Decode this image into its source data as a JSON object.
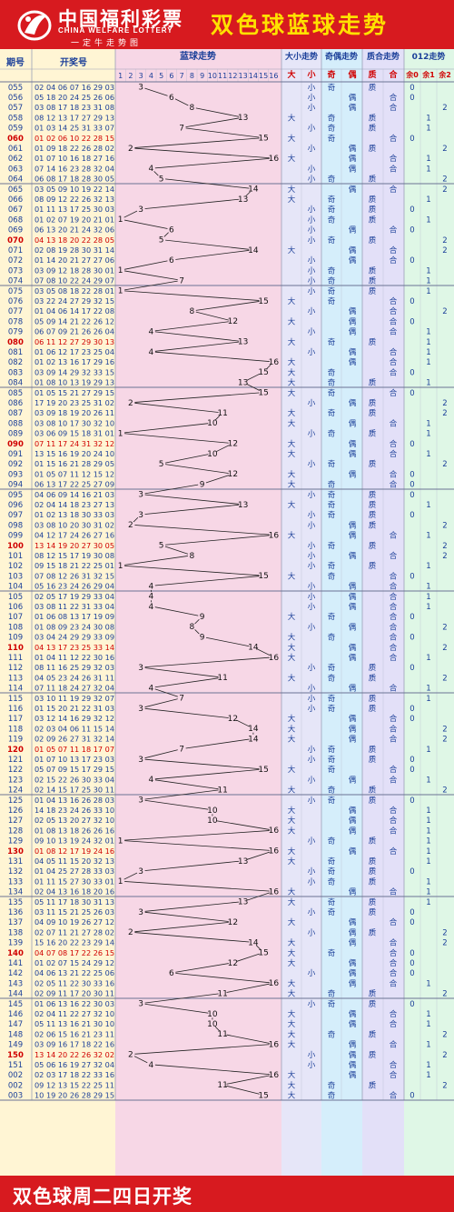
{
  "brand": {
    "name_cn": "中国福利彩票",
    "name_en": "CHINA WELFARE LOTTERY",
    "slogan": "一定牛走势图"
  },
  "title": "双色球蓝球走势",
  "footer": "双色球周二四日开奖",
  "colors": {
    "header_red": "#d71a1f",
    "title_yellow": "#ffe100",
    "text_blue": "#1b3f99",
    "highlight_red": "#d00000"
  },
  "columns": {
    "period": "期号",
    "numbers": "开奖号",
    "blue": "蓝球走势",
    "size": "大小走势",
    "parity": "奇偶走势",
    "prime": "质合走势",
    "mod3": "012走势"
  },
  "subheaders": {
    "big": "大",
    "small": "小",
    "odd": "奇",
    "even": "偶",
    "prime": "质",
    "composite": "合",
    "r0": "余0",
    "r1": "余1",
    "r2": "余2"
  },
  "chart_data": {
    "type": "table",
    "blue_range": [
      1,
      16
    ],
    "blue_ticks": [
      "1",
      "2",
      "3",
      "4",
      "5",
      "6",
      "7",
      "8",
      "9",
      "10",
      "11",
      "12",
      "13",
      "14",
      "15",
      "16"
    ],
    "rows": [
      {
        "p": "055",
        "n": "02 04 06 07 16 29 03",
        "b": 3
      },
      {
        "p": "056",
        "n": "05 18 20 24 25 26 06",
        "b": 6
      },
      {
        "p": "057",
        "n": "03 08 17 18 23 31 08",
        "b": 8
      },
      {
        "p": "058",
        "n": "08 12 13 17 27 29 13",
        "b": 13
      },
      {
        "p": "059",
        "n": "01 03 14 25 31 33 07",
        "b": 7
      },
      {
        "p": "060",
        "n": "01 02 06 10 22 28 15",
        "b": 15
      },
      {
        "p": "061",
        "n": "01 09 18 22 26 28 02",
        "b": 2
      },
      {
        "p": "062",
        "n": "01 07 10 16 18 27 16",
        "b": 16
      },
      {
        "p": "063",
        "n": "07 14 16 23 28 32 04",
        "b": 4
      },
      {
        "p": "064",
        "n": "06 08 17 18 28 30 05",
        "b": 5
      },
      {
        "p": "065",
        "n": "03 05 09 10 19 22 14",
        "b": 14
      },
      {
        "p": "066",
        "n": "08 09 12 22 26 32 13",
        "b": 13
      },
      {
        "p": "067",
        "n": "01 11 13 17 25 30 03",
        "b": 3
      },
      {
        "p": "068",
        "n": "01 02 07 19 20 21 01",
        "b": 1
      },
      {
        "p": "069",
        "n": "06 13 20 21 24 32 06",
        "b": 6
      },
      {
        "p": "070",
        "n": "04 13 18 20 22 28 05",
        "b": 5
      },
      {
        "p": "071",
        "n": "02 08 19 28 30 31 14",
        "b": 14
      },
      {
        "p": "072",
        "n": "01 14 20 21 27 27 06",
        "b": 6
      },
      {
        "p": "073",
        "n": "03 09 12 18 28 30 01",
        "b": 1
      },
      {
        "p": "074",
        "n": "07 08 10 22 24 29 07",
        "b": 7
      },
      {
        "p": "075",
        "n": "03 05 08 18 22 28 01",
        "b": 1
      },
      {
        "p": "076",
        "n": "03 22 24 27 29 32 15",
        "b": 15
      },
      {
        "p": "077",
        "n": "01 04 06 14 17 22 08",
        "b": 8
      },
      {
        "p": "078",
        "n": "05 09 14 21 22 26 12",
        "b": 12
      },
      {
        "p": "079",
        "n": "06 07 09 21 26 26 04",
        "b": 4
      },
      {
        "p": "080",
        "n": "06 11 12 27 29 30 13",
        "b": 13
      },
      {
        "p": "081",
        "n": "01 06 12 17 23 25 04",
        "b": 4
      },
      {
        "p": "082",
        "n": "01 02 13 16 17 29 16",
        "b": 16
      },
      {
        "p": "083",
        "n": "03 09 14 29 32 33 15",
        "b": 15
      },
      {
        "p": "084",
        "n": "01 08 10 13 19 29 13",
        "b": 13
      },
      {
        "p": "085",
        "n": "01 05 15 21 27 29 15",
        "b": 15
      },
      {
        "p": "086",
        "n": "17 19 20 23 25 31 02",
        "b": 2
      },
      {
        "p": "087",
        "n": "03 09 18 19 20 26 11",
        "b": 11
      },
      {
        "p": "088",
        "n": "03 08 10 17 30 32 10",
        "b": 10
      },
      {
        "p": "089",
        "n": "03 06 09 15 18 31 01",
        "b": 1
      },
      {
        "p": "090",
        "n": "07 11 17 24 31 32 12",
        "b": 12
      },
      {
        "p": "091",
        "n": "13 15 16 19 20 24 10",
        "b": 10
      },
      {
        "p": "092",
        "n": "01 15 16 21 28 29 05",
        "b": 5
      },
      {
        "p": "093",
        "n": "01 05 07 11 12 15 12",
        "b": 12
      },
      {
        "p": "094",
        "n": "06 13 17 22 25 27 09",
        "b": 9
      },
      {
        "p": "095",
        "n": "04 06 09 14 16 21 03",
        "b": 3
      },
      {
        "p": "096",
        "n": "02 04 14 18 23 27 13",
        "b": 13
      },
      {
        "p": "097",
        "n": "01 02 13 18 30 33 03",
        "b": 3
      },
      {
        "p": "098",
        "n": "03 08 10 20 30 31 02",
        "b": 2
      },
      {
        "p": "099",
        "n": "04 12 17 24 26 27 16",
        "b": 16
      },
      {
        "p": "100",
        "n": "13 14 19 20 27 30 05",
        "b": 5
      },
      {
        "p": "101",
        "n": "08 12 15 17 19 30 08",
        "b": 8
      },
      {
        "p": "102",
        "n": "09 15 18 21 22 25 01",
        "b": 1
      },
      {
        "p": "103",
        "n": "07 08 12 26 31 32 15",
        "b": 15
      },
      {
        "p": "104",
        "n": "05 16 23 24 26 29 04",
        "b": 4
      },
      {
        "p": "105",
        "n": "02 05 17 19 29 33 04",
        "b": 4
      },
      {
        "p": "106",
        "n": "03 08 11 22 31 33 04",
        "b": 4
      },
      {
        "p": "107",
        "n": "01 06 08 13 17 19 09",
        "b": 9
      },
      {
        "p": "108",
        "n": "01 08 09 23 24 30 08",
        "b": 8
      },
      {
        "p": "109",
        "n": "03 04 24 29 29 33 09",
        "b": 9
      },
      {
        "p": "110",
        "n": "04 13 17 23 25 33 14",
        "b": 14
      },
      {
        "p": "111",
        "n": "01 04 11 12 22 30 16",
        "b": 16
      },
      {
        "p": "112",
        "n": "08 11 16 25 29 32 03",
        "b": 3
      },
      {
        "p": "113",
        "n": "04 05 23 24 26 31 11",
        "b": 11
      },
      {
        "p": "114",
        "n": "07 11 18 24 27 32 04",
        "b": 4
      },
      {
        "p": "115",
        "n": "03 10 11 19 29 32 07",
        "b": 7
      },
      {
        "p": "116",
        "n": "01 15 20 21 22 31 03",
        "b": 3
      },
      {
        "p": "117",
        "n": "03 12 14 16 29 32 12",
        "b": 12
      },
      {
        "p": "118",
        "n": "02 03 04 06 11 15 14",
        "b": 14
      },
      {
        "p": "119",
        "n": "02 09 26 27 31 32 14",
        "b": 14
      },
      {
        "p": "120",
        "n": "01 05 07 11 18 17 07",
        "b": 7
      },
      {
        "p": "121",
        "n": "01 07 10 13 17 23 03",
        "b": 3
      },
      {
        "p": "122",
        "n": "05 07 09 15 17 29 15",
        "b": 15
      },
      {
        "p": "123",
        "n": "02 15 22 26 30 33 04",
        "b": 4
      },
      {
        "p": "124",
        "n": "02 14 15 17 25 30 11",
        "b": 11
      },
      {
        "p": "125",
        "n": "01 04 13 16 26 28 03",
        "b": 3
      },
      {
        "p": "126",
        "n": "14 18 23 24 26 33 10",
        "b": 10
      },
      {
        "p": "127",
        "n": "02 05 13 20 27 32 10",
        "b": 10
      },
      {
        "p": "128",
        "n": "01 08 13 18 26 26 16",
        "b": 16
      },
      {
        "p": "129",
        "n": "09 10 13 19 24 32 01",
        "b": 1
      },
      {
        "p": "130",
        "n": "01 08 12 17 19 24 16",
        "b": 16
      },
      {
        "p": "131",
        "n": "04 05 11 15 20 32 13",
        "b": 13
      },
      {
        "p": "132",
        "n": "01 04 25 27 28 33 03",
        "b": 3
      },
      {
        "p": "133",
        "n": "01 11 15 27 30 33 01",
        "b": 1
      },
      {
        "p": "134",
        "n": "02 04 13 16 18 20 16",
        "b": 16
      },
      {
        "p": "135",
        "n": "05 11 17 18 30 31 13",
        "b": 13
      },
      {
        "p": "136",
        "n": "03 11 15 21 25 26 03",
        "b": 3
      },
      {
        "p": "137",
        "n": "04 09 10 19 26 27 12",
        "b": 12
      },
      {
        "p": "138",
        "n": "02 07 11 21 27 28 02",
        "b": 2
      },
      {
        "p": "139",
        "n": "15 16 20 22 23 29 14",
        "b": 14
      },
      {
        "p": "140",
        "n": "04 07 08 17 22 26 15",
        "b": 15
      },
      {
        "p": "141",
        "n": "01 02 07 15 24 29 12",
        "b": 12
      },
      {
        "p": "142",
        "n": "04 06 13 21 22 25 06",
        "b": 6
      },
      {
        "p": "143",
        "n": "02 05 11 22 30 33 16",
        "b": 16
      },
      {
        "p": "144",
        "n": "02 09 11 17 20 30 11",
        "b": 11
      },
      {
        "p": "145",
        "n": "01 06 13 16 22 30 03",
        "b": 3
      },
      {
        "p": "146",
        "n": "02 04 11 22 27 32 10",
        "b": 10
      },
      {
        "p": "147",
        "n": "05 11 13 16 21 30 10",
        "b": 10
      },
      {
        "p": "148",
        "n": "02 06 15 16 21 23 11",
        "b": 11
      },
      {
        "p": "149",
        "n": "03 09 16 17 18 22 16",
        "b": 16
      },
      {
        "p": "150",
        "n": "13 14 20 22 26 32 02",
        "b": 2
      },
      {
        "p": "151",
        "n": "05 06 16 19 27 32 04",
        "b": 4
      },
      {
        "p": "002",
        "n": "02 03 17 18 22 33 16",
        "b": 16
      },
      {
        "p": "002",
        "n": "09 12 13 15 22 25 11",
        "b": 11
      },
      {
        "p": "003",
        "n": "10 19 20 26 28 29 15",
        "b": 15
      }
    ]
  }
}
